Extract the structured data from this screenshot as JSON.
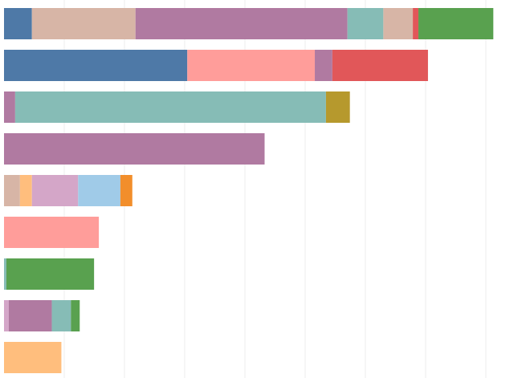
{
  "colors": {
    "blue": "#4e79a7",
    "tan": "#d7b5a6",
    "purple": "#b07aa1",
    "teal": "#86bcb6",
    "red": "#e15759",
    "green": "#59a14f",
    "pink": "#ff9d9a",
    "olive": "#b6992d",
    "light_orange": "#ffbe7d",
    "lilac": "#d4a6c8",
    "light_blue": "#a0cbe8",
    "orange": "#f28e2b",
    "grid": "#ececec"
  },
  "chart_data": {
    "type": "bar",
    "orientation": "horizontal",
    "stacked": true,
    "grid": "vertical",
    "xlim": [
      0,
      655
    ],
    "categories": [
      "",
      "",
      "",
      "",
      "",
      "",
      "",
      "",
      ""
    ],
    "series": [
      {
        "color": "#4e79a7",
        "values": [
          35,
          230,
          0,
          0,
          0,
          0,
          0,
          0,
          0
        ]
      },
      {
        "color": "#d7b5a6",
        "values": [
          130,
          0,
          0,
          0,
          20,
          0,
          0,
          0,
          0
        ]
      },
      {
        "color": "#ffbe7d",
        "values": [
          0,
          0,
          0,
          0,
          15,
          0,
          0,
          0,
          72
        ]
      },
      {
        "color": "#d4a6c8",
        "values": [
          0,
          0,
          0,
          0,
          58,
          0,
          0,
          6,
          0
        ]
      },
      {
        "color": "#a0cbe8",
        "values": [
          0,
          0,
          0,
          0,
          53,
          0,
          0,
          0,
          0
        ]
      },
      {
        "color": "#f28e2b",
        "values": [
          0,
          0,
          0,
          0,
          15,
          0,
          0,
          0,
          0
        ]
      },
      {
        "color": "#ff9d9a",
        "values": [
          0,
          160,
          0,
          0,
          0,
          119,
          0,
          0,
          0
        ]
      },
      {
        "color": "#b07aa1",
        "values": [
          266,
          22,
          14,
          327,
          0,
          0,
          0,
          54,
          0
        ]
      },
      {
        "color": "#86bcb6",
        "values": [
          45,
          0,
          390,
          0,
          0,
          0,
          3,
          24,
          0
        ]
      },
      {
        "color": "#b6992d",
        "values": [
          0,
          0,
          30,
          0,
          0,
          0,
          0,
          0,
          0
        ]
      },
      {
        "color": "#d7b5a6",
        "values": [
          37,
          0,
          0,
          0,
          0,
          0,
          0,
          0,
          0
        ]
      },
      {
        "color": "#e15759",
        "values": [
          7,
          120,
          0,
          0,
          0,
          0,
          0,
          0,
          0
        ]
      },
      {
        "color": "#59a14f",
        "values": [
          94,
          0,
          0,
          0,
          0,
          0,
          110,
          11,
          0
        ]
      }
    ]
  }
}
